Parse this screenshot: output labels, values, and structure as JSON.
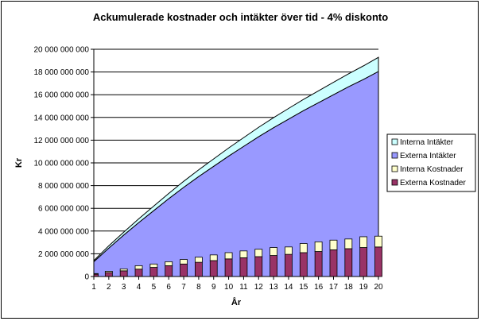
{
  "chart_data": {
    "type": "area",
    "title": "Ackumulerade kostnader och intäkter över tid - 4%  diskonto",
    "xlabel": "År",
    "ylabel": "Kr",
    "x": [
      1,
      2,
      3,
      4,
      5,
      6,
      7,
      8,
      9,
      10,
      11,
      12,
      13,
      14,
      15,
      16,
      17,
      18,
      19,
      20
    ],
    "ylim": [
      0,
      20000000000
    ],
    "yticks": [
      0,
      2000000000,
      4000000000,
      6000000000,
      8000000000,
      10000000000,
      12000000000,
      14000000000,
      16000000000,
      18000000000,
      20000000000
    ],
    "ytick_labels": [
      "0",
      "2 000 000 000",
      "4 000 000 000",
      "6 000 000 000",
      "8 000 000 000",
      "10 000 000 000",
      "12 000 000 000",
      "14 000 000 000",
      "16 000 000 000",
      "18 000 000 000",
      "20 000 000 000"
    ],
    "grid": "horizontal",
    "legend_position": "right",
    "area_series": [
      {
        "name": "Externa Intäkter",
        "color": "#9999ff",
        "values": [
          1300000000,
          2500000000,
          3650000000,
          4750000000,
          5800000000,
          6850000000,
          7850000000,
          8800000000,
          9700000000,
          10600000000,
          11450000000,
          12300000000,
          13100000000,
          13850000000,
          14600000000,
          15300000000,
          16000000000,
          16700000000,
          17350000000,
          18050000000
        ]
      },
      {
        "name": "Interna Intäkter",
        "color": "#ccffff",
        "values": [
          100000000,
          200000000,
          260000000,
          330000000,
          400000000,
          460000000,
          530000000,
          590000000,
          650000000,
          710000000,
          770000000,
          830000000,
          880000000,
          940000000,
          990000000,
          1040000000,
          1090000000,
          1140000000,
          1190000000,
          1240000000
        ]
      }
    ],
    "bar_series": [
      {
        "name": "Externa Kostnader",
        "color": "#993366",
        "values": [
          200000000,
          350000000,
          500000000,
          650000000,
          800000000,
          950000000,
          1100000000,
          1250000000,
          1400000000,
          1550000000,
          1650000000,
          1750000000,
          1850000000,
          1950000000,
          2100000000,
          2200000000,
          2350000000,
          2450000000,
          2550000000,
          2600000000
        ]
      },
      {
        "name": "Interna Kostnader",
        "color": "#ffffcc",
        "values": [
          60000000,
          110000000,
          170000000,
          300000000,
          300000000,
          350000000,
          400000000,
          450000000,
          500000000,
          550000000,
          600000000,
          650000000,
          700000000,
          650000000,
          800000000,
          850000000,
          850000000,
          850000000,
          950000000,
          950000000
        ]
      }
    ],
    "legend_order": [
      "Interna Intäkter",
      "Externa Intäkter",
      "Interna Kostnader",
      "Externa Kostnader"
    ]
  }
}
